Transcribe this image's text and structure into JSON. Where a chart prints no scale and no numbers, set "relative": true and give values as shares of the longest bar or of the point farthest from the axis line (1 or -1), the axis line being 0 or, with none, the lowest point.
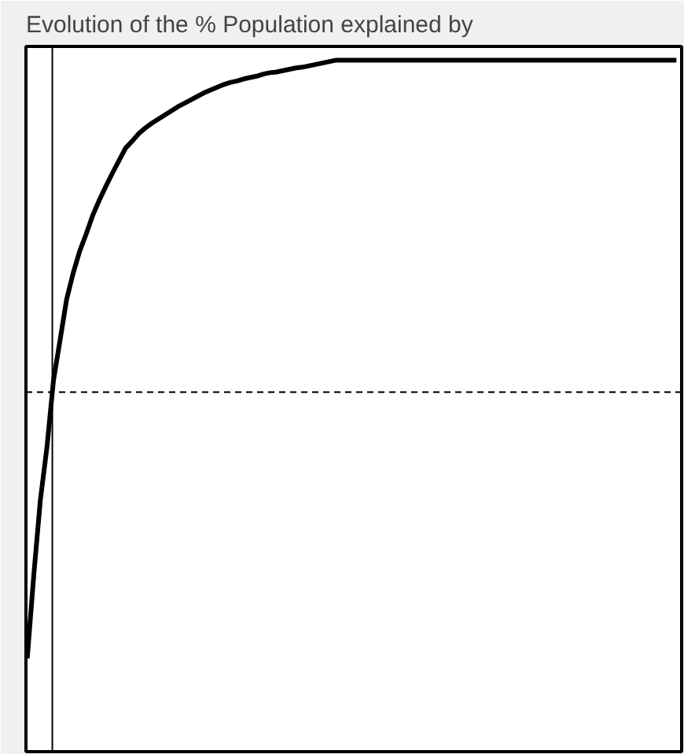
{
  "chart_data": {
    "type": "line",
    "title": "Evolution of the % Population explained  by",
    "relative": true,
    "categories": [
      null,
      null,
      null,
      null,
      null,
      null,
      null,
      null,
      null,
      null,
      null,
      null,
      null,
      null,
      null,
      null,
      null,
      null,
      null,
      null,
      null,
      null,
      null,
      null,
      null,
      null,
      null,
      null,
      null,
      null,
      null,
      null,
      null,
      null,
      null,
      null,
      null,
      null,
      null,
      null,
      null,
      null,
      null,
      null,
      null,
      null,
      null,
      null,
      null,
      null,
      null,
      null,
      null,
      null,
      null,
      null,
      null,
      null,
      null,
      null,
      null,
      null,
      null,
      null,
      null,
      null,
      null,
      null,
      null,
      null,
      null,
      null,
      null,
      null,
      null,
      null,
      null,
      null,
      null,
      null,
      null,
      null,
      null,
      null,
      null,
      null,
      null,
      null,
      null,
      null,
      null,
      null,
      null,
      null,
      null,
      null,
      null,
      null,
      null,
      null
    ],
    "tick_labels": false,
    "series": [
      {
        "color": "#000000",
        "values": [
          0.135,
          0.256,
          0.364,
          0.44,
          0.537,
          0.595,
          0.654,
          0.692,
          0.724,
          0.749,
          0.776,
          0.798,
          0.818,
          0.837,
          0.855,
          0.873,
          0.883,
          0.894,
          0.902,
          0.909,
          0.915,
          0.921,
          0.927,
          0.933,
          0.938,
          0.943,
          0.948,
          0.953,
          0.957,
          0.961,
          0.965,
          0.968,
          0.97,
          0.973,
          0.975,
          0.977,
          0.98,
          0.982,
          0.983,
          0.985,
          0.987,
          0.989,
          0.99,
          0.992,
          0.994,
          0.996,
          0.998,
          1.0,
          1.0,
          1.0,
          1.0,
          1.0,
          1.0,
          1.0,
          1.0,
          1.0,
          1.0,
          1.0,
          1.0,
          1.0,
          1.0,
          1.0,
          1.0,
          1.0,
          1.0,
          1.0,
          1.0,
          1.0,
          1.0,
          1.0,
          1.0,
          1.0,
          1.0,
          1.0,
          1.0,
          1.0,
          1.0,
          1.0,
          1.0,
          1.0,
          1.0,
          1.0,
          1.0,
          1.0,
          1.0,
          1.0,
          1.0,
          1.0,
          1.0,
          1.0,
          1.0,
          1.0,
          1.0,
          1.0,
          1.0,
          1.0,
          1.0,
          1.0,
          1.0,
          1.0
        ]
      }
    ],
    "ref_lines": [
      {
        "axis": "y",
        "value": 0.52,
        "color": "#000000",
        "line_style": "dashed"
      }
    ]
  }
}
